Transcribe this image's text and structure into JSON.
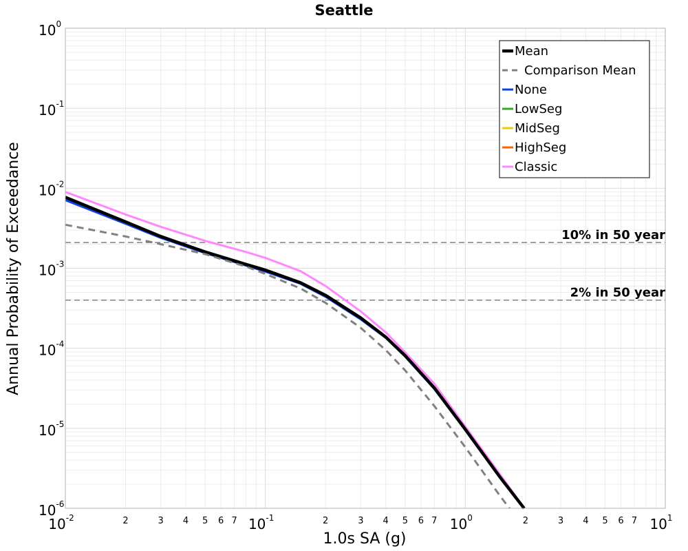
{
  "chart_data": {
    "type": "line",
    "title": "Seattle",
    "xlabel": "1.0s SA (g)",
    "ylabel": "Annual Probability of Exceedance",
    "x_scale": "log",
    "y_scale": "log",
    "xlim": [
      0.01,
      10
    ],
    "ylim": [
      1e-06,
      1
    ],
    "grid": true,
    "legend_position": "top-right",
    "x_major_ticks": [
      {
        "base": "10",
        "exp": "-2"
      },
      {
        "base": "10",
        "exp": "-1"
      },
      {
        "base": "10",
        "exp": "0"
      },
      {
        "base": "10",
        "exp": "1"
      }
    ],
    "x_minor_tick_labels": [
      "2",
      "3",
      "4",
      "5",
      "6",
      "7"
    ],
    "y_major_ticks": [
      {
        "base": "10",
        "exp": "0"
      },
      {
        "base": "10",
        "exp": "-1"
      },
      {
        "base": "10",
        "exp": "-2"
      },
      {
        "base": "10",
        "exp": "-3"
      },
      {
        "base": "10",
        "exp": "-4"
      },
      {
        "base": "10",
        "exp": "-5"
      },
      {
        "base": "10",
        "exp": "-6"
      }
    ],
    "reference_lines": [
      {
        "label": "10% in 50 year",
        "y": 0.0021,
        "color": "#808080"
      },
      {
        "label": "2% in 50 year",
        "y": 0.0004,
        "color": "#808080"
      }
    ],
    "series": [
      {
        "name": "Classic",
        "color": "#ff88ff",
        "dash": "solid",
        "x": [
          0.01,
          0.02,
          0.03,
          0.05,
          0.08,
          0.1,
          0.15,
          0.2,
          0.3,
          0.4,
          0.5,
          0.7,
          1.0,
          1.5,
          2.0
        ],
        "y": [
          0.009,
          0.0047,
          0.0033,
          0.0022,
          0.0016,
          0.00135,
          0.00092,
          0.0006,
          0.00029,
          0.000158,
          8.9e-05,
          3.6e-05,
          1.05e-05,
          2.6e-06,
          9.5e-07
        ]
      },
      {
        "name": "None",
        "color": "#1040e0",
        "dash": "solid",
        "x": [
          0.01,
          0.02,
          0.03,
          0.05,
          0.08,
          0.1,
          0.15,
          0.2,
          0.3,
          0.4,
          0.5,
          0.7,
          1.0,
          1.5,
          2.0
        ],
        "y": [
          0.0071,
          0.0036,
          0.0024,
          0.00155,
          0.00108,
          0.00091,
          0.00064,
          0.00044,
          0.00023,
          0.000135,
          7.9e-05,
          3.1e-05,
          9.5e-06,
          2.4e-06,
          9.5e-07
        ]
      },
      {
        "name": "Mean",
        "color": "#000000",
        "dash": "solid",
        "x": [
          0.01,
          0.02,
          0.03,
          0.05,
          0.08,
          0.1,
          0.15,
          0.2,
          0.3,
          0.4,
          0.5,
          0.7,
          1.0,
          1.5,
          2.0
        ],
        "y": [
          0.0077,
          0.0038,
          0.0025,
          0.0016,
          0.00112,
          0.00095,
          0.00066,
          0.00046,
          0.00024,
          0.000138,
          8.1e-05,
          3.2e-05,
          9.7e-06,
          2.4e-06,
          9.5e-07
        ]
      },
      {
        "name": "Comparison Mean",
        "color": "#808080",
        "dash": "dashed",
        "x": [
          0.01,
          0.02,
          0.03,
          0.05,
          0.08,
          0.1,
          0.15,
          0.2,
          0.3,
          0.4,
          0.5,
          0.7,
          1.0,
          1.5,
          2.0
        ],
        "y": [
          0.0035,
          0.0025,
          0.002,
          0.0015,
          0.00105,
          0.00085,
          0.00056,
          0.00037,
          0.00018,
          9.5e-05,
          5.3e-05,
          1.9e-05,
          5.8e-06,
          1.4e-06,
          5.5e-07
        ]
      },
      {
        "name": "LowSeg",
        "color": "#33aa22",
        "dash": "solid",
        "x": [],
        "y": []
      },
      {
        "name": "MidSeg",
        "color": "#eecc00",
        "dash": "solid",
        "x": [],
        "y": []
      },
      {
        "name": "HighSeg",
        "color": "#ff6600",
        "dash": "solid",
        "x": [],
        "y": []
      }
    ],
    "legend_order": [
      "Mean",
      "Comparison Mean",
      "None",
      "LowSeg",
      "MidSeg",
      "HighSeg",
      "Classic"
    ]
  }
}
